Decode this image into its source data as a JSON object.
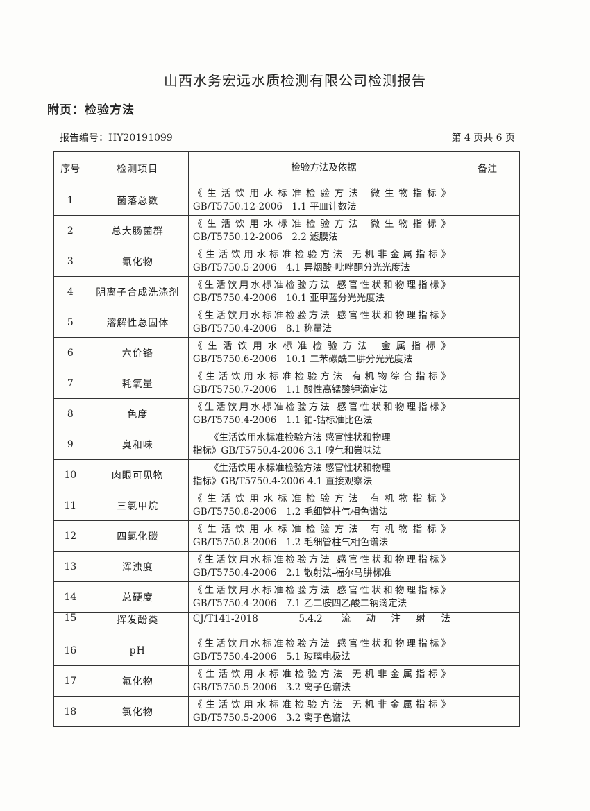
{
  "title": "山西水务宏远水质检测有限公司检测报告",
  "subtitle": "附页：检验方法",
  "report_number": "报告编号：HY20191099",
  "page_info": "第 4 页共 6 页",
  "table": {
    "headers": [
      "序号",
      "检测项目",
      "检验方法及依据",
      "备注"
    ],
    "rows": [
      {
        "no": "1",
        "item": "菌落总数",
        "line1": "《生活饮用水标准检验方法 微生物指标》",
        "line2": "GB/T5750.12-2006　1.1 平皿计数法",
        "note": ""
      },
      {
        "no": "2",
        "item": "总大肠菌群",
        "line1": "《生活饮用水标准检验方法 微生物指标》",
        "line2": "GB/T5750.12-2006　2.2 滤膜法",
        "note": ""
      },
      {
        "no": "3",
        "item": "氰化物",
        "line1": "《生活饮用水标准检验方法 无机非金属指标》",
        "line2": "GB/T5750.5-2006　4.1 异烟酸-吡唑酮分光光度法",
        "note": ""
      },
      {
        "no": "4",
        "item": "阴离子合成洗涤剂",
        "line1": "《生活饮用水标准检验方法 感官性状和物理指标》",
        "line2": "GB/T5750.4-2006　10.1 亚甲蓝分光光度法",
        "note": ""
      },
      {
        "no": "5",
        "item": "溶解性总固体",
        "line1": "《生活饮用水标准检验方法 感官性状和物理指标》",
        "line2": "GB/T5750.4-2006　8.1 称量法",
        "note": ""
      },
      {
        "no": "6",
        "item": "六价铬",
        "line1": "《生活饮用水标准检验方法 金属指标》",
        "line2": "GB/T5750.6-2006　10.1 二苯碳酰二肼分光光度法",
        "note": ""
      },
      {
        "no": "7",
        "item": "耗氧量",
        "line1": "《生活饮用水标准检验方法 有机物综合指标》",
        "line2": "GB/T5750.7-2006　1.1 酸性高锰酸钾滴定法",
        "note": ""
      },
      {
        "no": "8",
        "item": "色度",
        "line1": "《生活饮用水标准检验方法 感官性状和物理指标》",
        "line2": "GB/T5750.4-2006　1.1 铂-钴标准比色法",
        "note": ""
      },
      {
        "no": "9",
        "item": "臭和味",
        "line1": "《生活饮用水标准检验方法 感官性状和物理",
        "line2": "指标》GB/T5750.4-2006 3.1 嗅气和尝味法",
        "note": ""
      },
      {
        "no": "10",
        "item": "肉眼可见物",
        "line1": "《生活饮用水标准检验方法 感官性状和物理",
        "line2": "指标》GB/T5750.4-2006 4.1 直接观察法",
        "note": ""
      },
      {
        "no": "11",
        "item": "三氯甲烷",
        "line1": "《生活饮用水标准检验方法 有机物指标》",
        "line2": "GB/T5750.8-2006　1.2 毛细管柱气相色谱法",
        "note": ""
      },
      {
        "no": "12",
        "item": "四氯化碳",
        "line1": "《生活饮用水标准检验方法 有机物指标》",
        "line2": "GB/T5750.8-2006　1.2 毛细管柱气相色谱法",
        "note": ""
      },
      {
        "no": "13",
        "item": "浑浊度",
        "line1": "《生活饮用水标准检验方法 感官性状和物理指标》",
        "line2": "GB/T5750.4-2006　2.1 散射法-福尔马肼标准",
        "note": ""
      },
      {
        "no": "14",
        "item": "总硬度",
        "line1": "《生活饮用水标准检验方法 感官性状和物理指标》",
        "line2": "GB/T5750.4-2006　7.1 乙二胺四乙酸二钠滴定法",
        "note": ""
      },
      {
        "no": "15",
        "item": "挥发酚类",
        "line1": "CJ/T141-2018　5.4.2 流动注射法",
        "line2": "",
        "note": ""
      },
      {
        "no": "16",
        "item": "pH",
        "line1": "《生活饮用水标准检验方法 感官性状和物理指标》",
        "line2": "GB/T5750.4-2006　5.1 玻璃电极法",
        "note": ""
      },
      {
        "no": "17",
        "item": "氟化物",
        "line1": "《生活饮用水标准检验方法 无机非金属指标》",
        "line2": "GB/T5750.5-2006　3.2 离子色谱法",
        "note": ""
      },
      {
        "no": "18",
        "item": "氯化物",
        "line1": "《生活饮用水标准检验方法 无机非金属指标》",
        "line2": "GB/T5750.5-2006　3.2 离子色谱法",
        "note": ""
      }
    ]
  }
}
